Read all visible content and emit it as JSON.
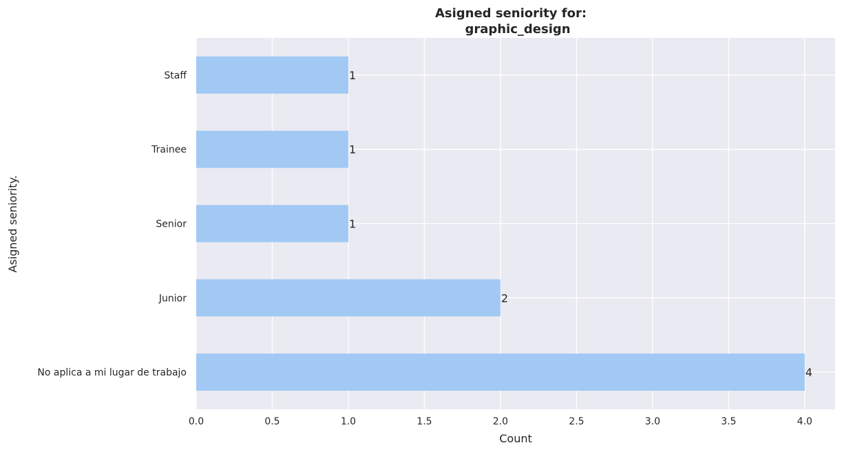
{
  "chart_data": {
    "type": "bar",
    "orientation": "horizontal",
    "title_line1": "Asigned seniority for:",
    "title_line2": "graphic_design",
    "xlabel": "Count",
    "ylabel": "Asigned seniority.",
    "categories": [
      "No aplica a mi lugar de trabajo",
      "Junior",
      "Senior",
      "Trainee",
      "Staff"
    ],
    "values": [
      4,
      2,
      1,
      1,
      1
    ],
    "xlim": [
      0,
      4.2
    ],
    "xticks": [
      0.0,
      0.5,
      1.0,
      1.5,
      2.0,
      2.5,
      3.0,
      3.5,
      4.0
    ],
    "xtick_labels": [
      "0.0",
      "0.5",
      "1.0",
      "1.5",
      "2.0",
      "2.5",
      "3.0",
      "3.5",
      "4.0"
    ],
    "grid": true,
    "bar_color": "#a1c9f4",
    "background_color": "#eaeaf2",
    "grid_color": "#ffffff"
  }
}
